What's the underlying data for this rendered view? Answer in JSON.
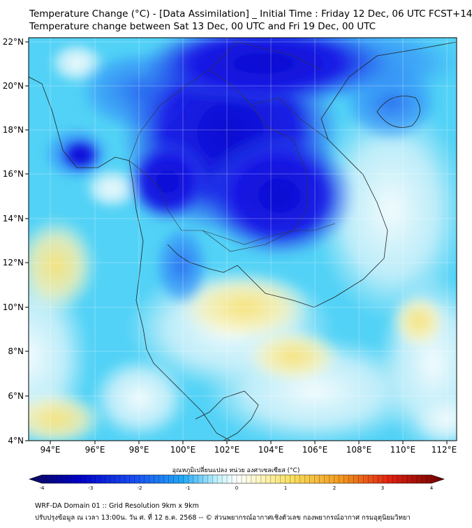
{
  "header": {
    "title_line1": "Temperature Change (°C) - [Data Assimilation] _ Initial Time : Friday 12 Dec, 06 UTC FCST+144",
    "title_line2": "Temperature change between Sat 13 Dec, 00 UTC and Fri 19 Dec, 00 UTC"
  },
  "map": {
    "lat_labels": [
      "22°N",
      "20°N",
      "18°N",
      "16°N",
      "14°N",
      "12°N",
      "10°N",
      "8°N",
      "6°N",
      "4°N"
    ],
    "lon_labels": [
      "94°E",
      "96°E",
      "98°E",
      "100°E",
      "102°E",
      "104°E",
      "106°E",
      "108°E",
      "110°E",
      "112°E"
    ],
    "lat_range": [
      4,
      22.3
    ],
    "lon_range": [
      93,
      112.5
    ],
    "grid": true
  },
  "colorbar": {
    "title": "อุณหภูมิเปลี่ยนแปลง หน่วย องศาเซลเซียส (°C)",
    "min": -4,
    "max": 4,
    "tick_labels": [
      "-4",
      "-3",
      "-2",
      "-1",
      "0",
      "1",
      "2",
      "3",
      "4"
    ]
  },
  "footer": {
    "line1": "WRF-DA Domain 01 :: Grid Resolution 9km x 9km",
    "line2": "ปรับปรุงข้อมูล ณ เวลา 13:00น. วัน ศ. ที่ 12 ธ.ค. 2568 -- © ส่วนพยากรณ์อากาศเชิงตัวเลข กองพยากรณ์อากาศ กรมอุตุนิยมวิทยา"
  },
  "colors": {
    "strong_cooling": "#1a1ae6",
    "cooling": "#5fa8ff",
    "slight_cooling": "#4fd0f5",
    "near_zero": "#e8f8fc",
    "slight_warming": "#fdf1a8",
    "warming": "#f6dc54"
  }
}
